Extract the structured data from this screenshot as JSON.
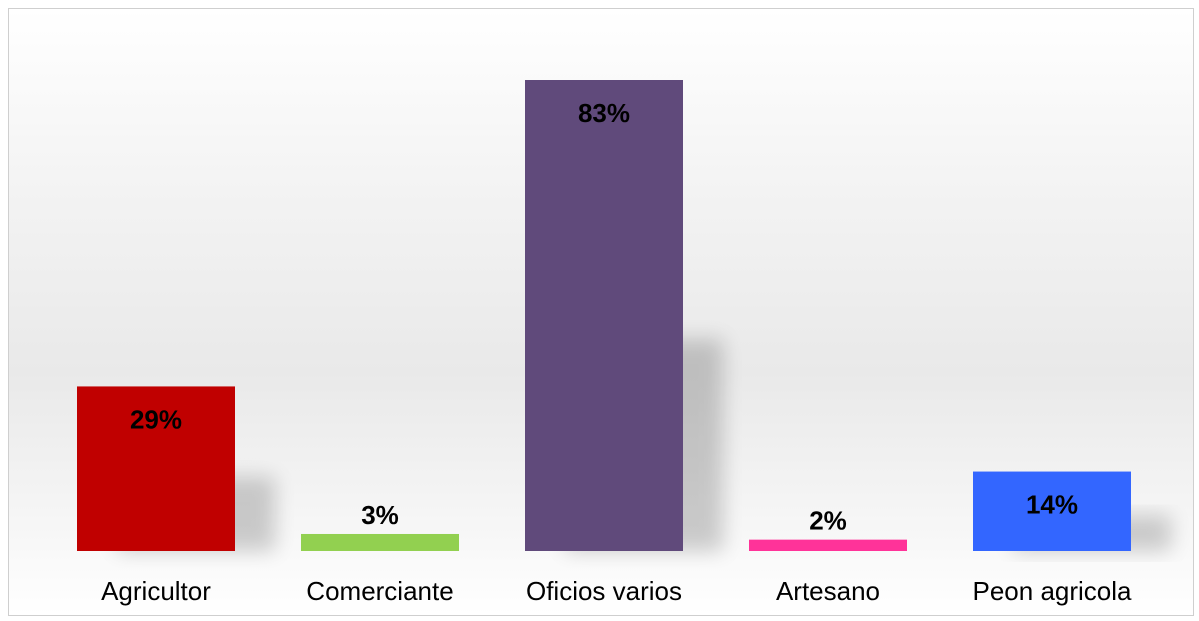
{
  "chart_data": {
    "type": "bar",
    "categories": [
      "Agricultor",
      "Comerciante",
      "Oficios varios",
      "Artesano",
      "Peon agricola"
    ],
    "values": [
      29,
      3,
      83,
      2,
      14
    ],
    "data_labels": [
      "29%",
      "3%",
      "83%",
      "2%",
      "14%"
    ],
    "colors": [
      "#c00000",
      "#92d050",
      "#604a7b",
      "#ff3399",
      "#3366ff"
    ],
    "ylim": [
      0,
      100
    ],
    "grid": false,
    "legend": "none"
  }
}
